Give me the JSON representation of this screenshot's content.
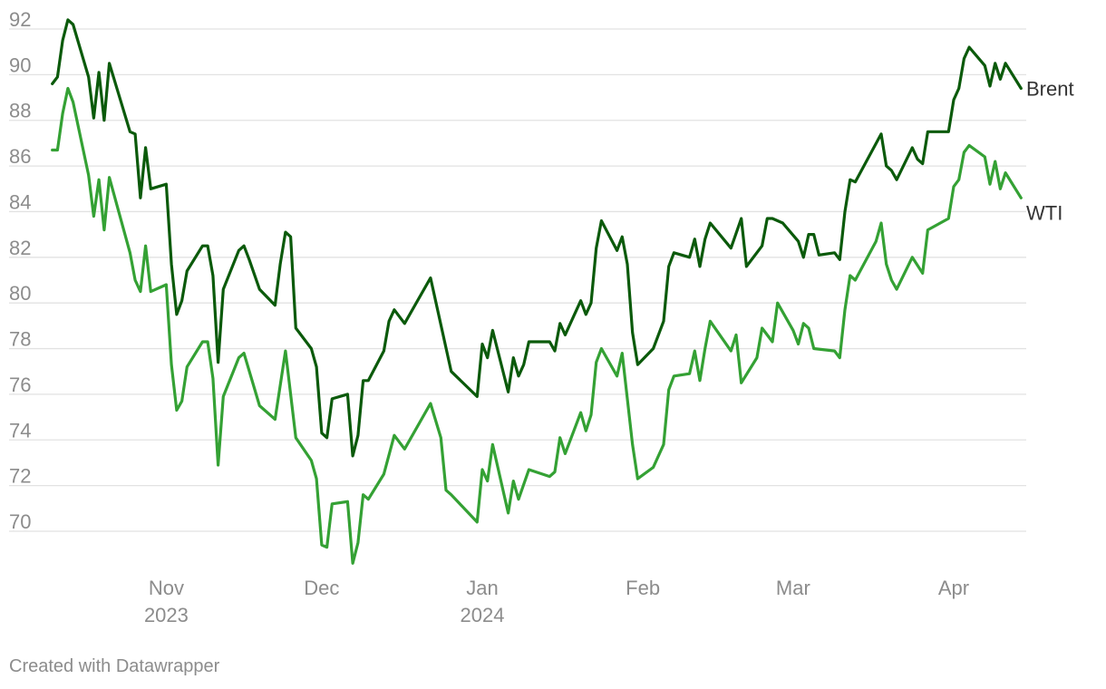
{
  "chart_data": {
    "type": "line",
    "title": "",
    "xlabel": "",
    "ylabel": "",
    "ylim": [
      68,
      93
    ],
    "xlim": [
      "2023-10-09",
      "2024-04-15"
    ],
    "grid": true,
    "legend": "inline-right",
    "y_ticks": [
      70,
      72,
      74,
      76,
      78,
      80,
      82,
      84,
      86,
      88,
      90,
      92
    ],
    "x_ticks": [
      {
        "date": "2023-11-01",
        "label": "Nov",
        "sublabel": "2023"
      },
      {
        "date": "2023-12-01",
        "label": "Dec",
        "sublabel": ""
      },
      {
        "date": "2024-01-01",
        "label": "Jan",
        "sublabel": "2024"
      },
      {
        "date": "2024-02-01",
        "label": "Feb",
        "sublabel": ""
      },
      {
        "date": "2024-03-01",
        "label": "Mar",
        "sublabel": ""
      },
      {
        "date": "2024-04-01",
        "label": "Apr",
        "sublabel": ""
      }
    ],
    "series": [
      {
        "name": "Brent",
        "color": "#0b5a0b",
        "points": [
          [
            "2023-10-10",
            89.6
          ],
          [
            "2023-10-11",
            89.9
          ],
          [
            "2023-10-12",
            91.5
          ],
          [
            "2023-10-13",
            92.4
          ],
          [
            "2023-10-14",
            92.2
          ],
          [
            "2023-10-17",
            89.9
          ],
          [
            "2023-10-18",
            88.1
          ],
          [
            "2023-10-19",
            90.1
          ],
          [
            "2023-10-20",
            88.0
          ],
          [
            "2023-10-21",
            90.5
          ],
          [
            "2023-10-25",
            87.5
          ],
          [
            "2023-10-26",
            87.4
          ],
          [
            "2023-10-27",
            84.6
          ],
          [
            "2023-10-28",
            86.8
          ],
          [
            "2023-10-29",
            85.0
          ],
          [
            "2023-11-01",
            85.2
          ],
          [
            "2023-11-02",
            81.7
          ],
          [
            "2023-11-03",
            79.5
          ],
          [
            "2023-11-04",
            80.1
          ],
          [
            "2023-11-05",
            81.4
          ],
          [
            "2023-11-08",
            82.5
          ],
          [
            "2023-11-09",
            82.5
          ],
          [
            "2023-11-10",
            81.2
          ],
          [
            "2023-11-11",
            77.4
          ],
          [
            "2023-11-12",
            80.6
          ],
          [
            "2023-11-15",
            82.3
          ],
          [
            "2023-11-16",
            82.5
          ],
          [
            "2023-11-17",
            81.9
          ],
          [
            "2023-11-19",
            80.6
          ],
          [
            "2023-11-22",
            79.9
          ],
          [
            "2023-11-23",
            81.7
          ],
          [
            "2023-11-24",
            83.1
          ],
          [
            "2023-11-25",
            82.9
          ],
          [
            "2023-11-26",
            78.9
          ],
          [
            "2023-11-29",
            78.0
          ],
          [
            "2023-11-30",
            77.2
          ],
          [
            "2023-12-01",
            74.3
          ],
          [
            "2023-12-02",
            74.1
          ],
          [
            "2023-12-03",
            75.8
          ],
          [
            "2023-12-06",
            76.0
          ],
          [
            "2023-12-07",
            73.3
          ],
          [
            "2023-12-08",
            74.2
          ],
          [
            "2023-12-09",
            76.6
          ],
          [
            "2023-12-10",
            76.6
          ],
          [
            "2023-12-13",
            77.9
          ],
          [
            "2023-12-14",
            79.2
          ],
          [
            "2023-12-15",
            79.7
          ],
          [
            "2023-12-17",
            79.1
          ],
          [
            "2023-12-22",
            81.1
          ],
          [
            "2023-12-26",
            77.0
          ],
          [
            "2023-12-31",
            75.9
          ],
          [
            "2024-01-01",
            78.2
          ],
          [
            "2024-01-02",
            77.6
          ],
          [
            "2024-01-03",
            78.8
          ],
          [
            "2024-01-06",
            76.1
          ],
          [
            "2024-01-07",
            77.6
          ],
          [
            "2024-01-08",
            76.8
          ],
          [
            "2024-01-09",
            77.3
          ],
          [
            "2024-01-10",
            78.3
          ],
          [
            "2024-01-14",
            78.3
          ],
          [
            "2024-01-15",
            77.9
          ],
          [
            "2024-01-16",
            79.1
          ],
          [
            "2024-01-17",
            78.6
          ],
          [
            "2024-01-20",
            80.1
          ],
          [
            "2024-01-21",
            79.5
          ],
          [
            "2024-01-22",
            80.0
          ],
          [
            "2024-01-23",
            82.4
          ],
          [
            "2024-01-24",
            83.6
          ],
          [
            "2024-01-27",
            82.3
          ],
          [
            "2024-01-28",
            82.9
          ],
          [
            "2024-01-29",
            81.7
          ],
          [
            "2024-01-30",
            78.7
          ],
          [
            "2024-01-31",
            77.3
          ],
          [
            "2024-02-03",
            78.0
          ],
          [
            "2024-02-05",
            79.2
          ],
          [
            "2024-02-06",
            81.6
          ],
          [
            "2024-02-07",
            82.2
          ],
          [
            "2024-02-10",
            82.0
          ],
          [
            "2024-02-11",
            82.8
          ],
          [
            "2024-02-12",
            81.6
          ],
          [
            "2024-02-13",
            82.8
          ],
          [
            "2024-02-14",
            83.5
          ],
          [
            "2024-02-18",
            82.4
          ],
          [
            "2024-02-20",
            83.7
          ],
          [
            "2024-02-21",
            81.6
          ],
          [
            "2024-02-24",
            82.5
          ],
          [
            "2024-02-25",
            83.7
          ],
          [
            "2024-02-26",
            83.7
          ],
          [
            "2024-02-28",
            83.5
          ],
          [
            "2024-03-02",
            82.7
          ],
          [
            "2024-03-03",
            82.0
          ],
          [
            "2024-03-04",
            83.0
          ],
          [
            "2024-03-05",
            83.0
          ],
          [
            "2024-03-06",
            82.1
          ],
          [
            "2024-03-09",
            82.2
          ],
          [
            "2024-03-10",
            81.9
          ],
          [
            "2024-03-11",
            84.0
          ],
          [
            "2024-03-12",
            85.4
          ],
          [
            "2024-03-13",
            85.3
          ],
          [
            "2024-03-18",
            87.4
          ],
          [
            "2024-03-19",
            86.0
          ],
          [
            "2024-03-20",
            85.8
          ],
          [
            "2024-03-21",
            85.4
          ],
          [
            "2024-03-24",
            86.8
          ],
          [
            "2024-03-25",
            86.3
          ],
          [
            "2024-03-26",
            86.1
          ],
          [
            "2024-03-27",
            87.5
          ],
          [
            "2024-03-31",
            87.5
          ],
          [
            "2024-04-01",
            88.9
          ],
          [
            "2024-04-02",
            89.4
          ],
          [
            "2024-04-03",
            90.7
          ],
          [
            "2024-04-04",
            91.2
          ],
          [
            "2024-04-07",
            90.4
          ],
          [
            "2024-04-08",
            89.5
          ],
          [
            "2024-04-09",
            90.5
          ],
          [
            "2024-04-10",
            89.8
          ],
          [
            "2024-04-11",
            90.5
          ],
          [
            "2024-04-14",
            89.4
          ]
        ]
      },
      {
        "name": "WTI",
        "color": "#34a134",
        "points": [
          [
            "2023-10-10",
            86.7
          ],
          [
            "2023-10-11",
            86.7
          ],
          [
            "2023-10-12",
            88.3
          ],
          [
            "2023-10-13",
            89.4
          ],
          [
            "2023-10-14",
            88.8
          ],
          [
            "2023-10-17",
            85.6
          ],
          [
            "2023-10-18",
            83.8
          ],
          [
            "2023-10-19",
            85.4
          ],
          [
            "2023-10-20",
            83.2
          ],
          [
            "2023-10-21",
            85.5
          ],
          [
            "2023-10-25",
            82.2
          ],
          [
            "2023-10-26",
            81.0
          ],
          [
            "2023-10-27",
            80.5
          ],
          [
            "2023-10-28",
            82.5
          ],
          [
            "2023-10-29",
            80.5
          ],
          [
            "2023-11-01",
            80.8
          ],
          [
            "2023-11-02",
            77.3
          ],
          [
            "2023-11-03",
            75.3
          ],
          [
            "2023-11-04",
            75.7
          ],
          [
            "2023-11-05",
            77.2
          ],
          [
            "2023-11-08",
            78.3
          ],
          [
            "2023-11-09",
            78.3
          ],
          [
            "2023-11-10",
            76.7
          ],
          [
            "2023-11-11",
            72.9
          ],
          [
            "2023-11-12",
            75.9
          ],
          [
            "2023-11-15",
            77.6
          ],
          [
            "2023-11-16",
            77.8
          ],
          [
            "2023-11-19",
            75.5
          ],
          [
            "2023-11-22",
            74.9
          ],
          [
            "2023-11-24",
            77.9
          ],
          [
            "2023-11-26",
            74.1
          ],
          [
            "2023-11-29",
            73.1
          ],
          [
            "2023-11-30",
            72.3
          ],
          [
            "2023-12-01",
            69.4
          ],
          [
            "2023-12-02",
            69.3
          ],
          [
            "2023-12-03",
            71.2
          ],
          [
            "2023-12-06",
            71.3
          ],
          [
            "2023-12-07",
            68.6
          ],
          [
            "2023-12-08",
            69.5
          ],
          [
            "2023-12-09",
            71.6
          ],
          [
            "2023-12-10",
            71.4
          ],
          [
            "2023-12-13",
            72.5
          ],
          [
            "2023-12-15",
            74.2
          ],
          [
            "2023-12-17",
            73.6
          ],
          [
            "2023-12-22",
            75.6
          ],
          [
            "2023-12-24",
            74.1
          ],
          [
            "2023-12-25",
            71.8
          ],
          [
            "2023-12-26",
            71.6
          ],
          [
            "2023-12-31",
            70.4
          ],
          [
            "2024-01-01",
            72.7
          ],
          [
            "2024-01-02",
            72.2
          ],
          [
            "2024-01-03",
            73.8
          ],
          [
            "2024-01-06",
            70.8
          ],
          [
            "2024-01-07",
            72.2
          ],
          [
            "2024-01-08",
            71.4
          ],
          [
            "2024-01-10",
            72.7
          ],
          [
            "2024-01-14",
            72.4
          ],
          [
            "2024-01-15",
            72.6
          ],
          [
            "2024-01-16",
            74.1
          ],
          [
            "2024-01-17",
            73.4
          ],
          [
            "2024-01-20",
            75.2
          ],
          [
            "2024-01-21",
            74.4
          ],
          [
            "2024-01-22",
            75.1
          ],
          [
            "2024-01-23",
            77.4
          ],
          [
            "2024-01-24",
            78.0
          ],
          [
            "2024-01-27",
            76.8
          ],
          [
            "2024-01-28",
            77.8
          ],
          [
            "2024-01-30",
            73.8
          ],
          [
            "2024-01-31",
            72.3
          ],
          [
            "2024-02-03",
            72.8
          ],
          [
            "2024-02-05",
            73.8
          ],
          [
            "2024-02-06",
            76.2
          ],
          [
            "2024-02-07",
            76.8
          ],
          [
            "2024-02-10",
            76.9
          ],
          [
            "2024-02-11",
            77.9
          ],
          [
            "2024-02-12",
            76.6
          ],
          [
            "2024-02-13",
            78.0
          ],
          [
            "2024-02-14",
            79.2
          ],
          [
            "2024-02-18",
            77.9
          ],
          [
            "2024-02-19",
            78.6
          ],
          [
            "2024-02-20",
            76.5
          ],
          [
            "2024-02-23",
            77.6
          ],
          [
            "2024-02-24",
            78.9
          ],
          [
            "2024-02-26",
            78.3
          ],
          [
            "2024-02-27",
            80.0
          ],
          [
            "2024-03-01",
            78.8
          ],
          [
            "2024-03-02",
            78.2
          ],
          [
            "2024-03-03",
            79.1
          ],
          [
            "2024-03-04",
            78.9
          ],
          [
            "2024-03-05",
            78.0
          ],
          [
            "2024-03-09",
            77.9
          ],
          [
            "2024-03-10",
            77.6
          ],
          [
            "2024-03-11",
            79.7
          ],
          [
            "2024-03-12",
            81.2
          ],
          [
            "2024-03-13",
            81.0
          ],
          [
            "2024-03-17",
            82.7
          ],
          [
            "2024-03-18",
            83.5
          ],
          [
            "2024-03-19",
            81.7
          ],
          [
            "2024-03-20",
            81.0
          ],
          [
            "2024-03-21",
            80.6
          ],
          [
            "2024-03-24",
            82.0
          ],
          [
            "2024-03-26",
            81.3
          ],
          [
            "2024-03-27",
            83.2
          ],
          [
            "2024-03-31",
            83.7
          ],
          [
            "2024-04-01",
            85.1
          ],
          [
            "2024-04-02",
            85.4
          ],
          [
            "2024-04-03",
            86.6
          ],
          [
            "2024-04-04",
            86.9
          ],
          [
            "2024-04-07",
            86.4
          ],
          [
            "2024-04-08",
            85.2
          ],
          [
            "2024-04-09",
            86.2
          ],
          [
            "2024-04-10",
            85.0
          ],
          [
            "2024-04-11",
            85.7
          ],
          [
            "2024-04-14",
            84.6
          ]
        ]
      }
    ]
  },
  "footer": {
    "credit": "Created with Datawrapper"
  }
}
